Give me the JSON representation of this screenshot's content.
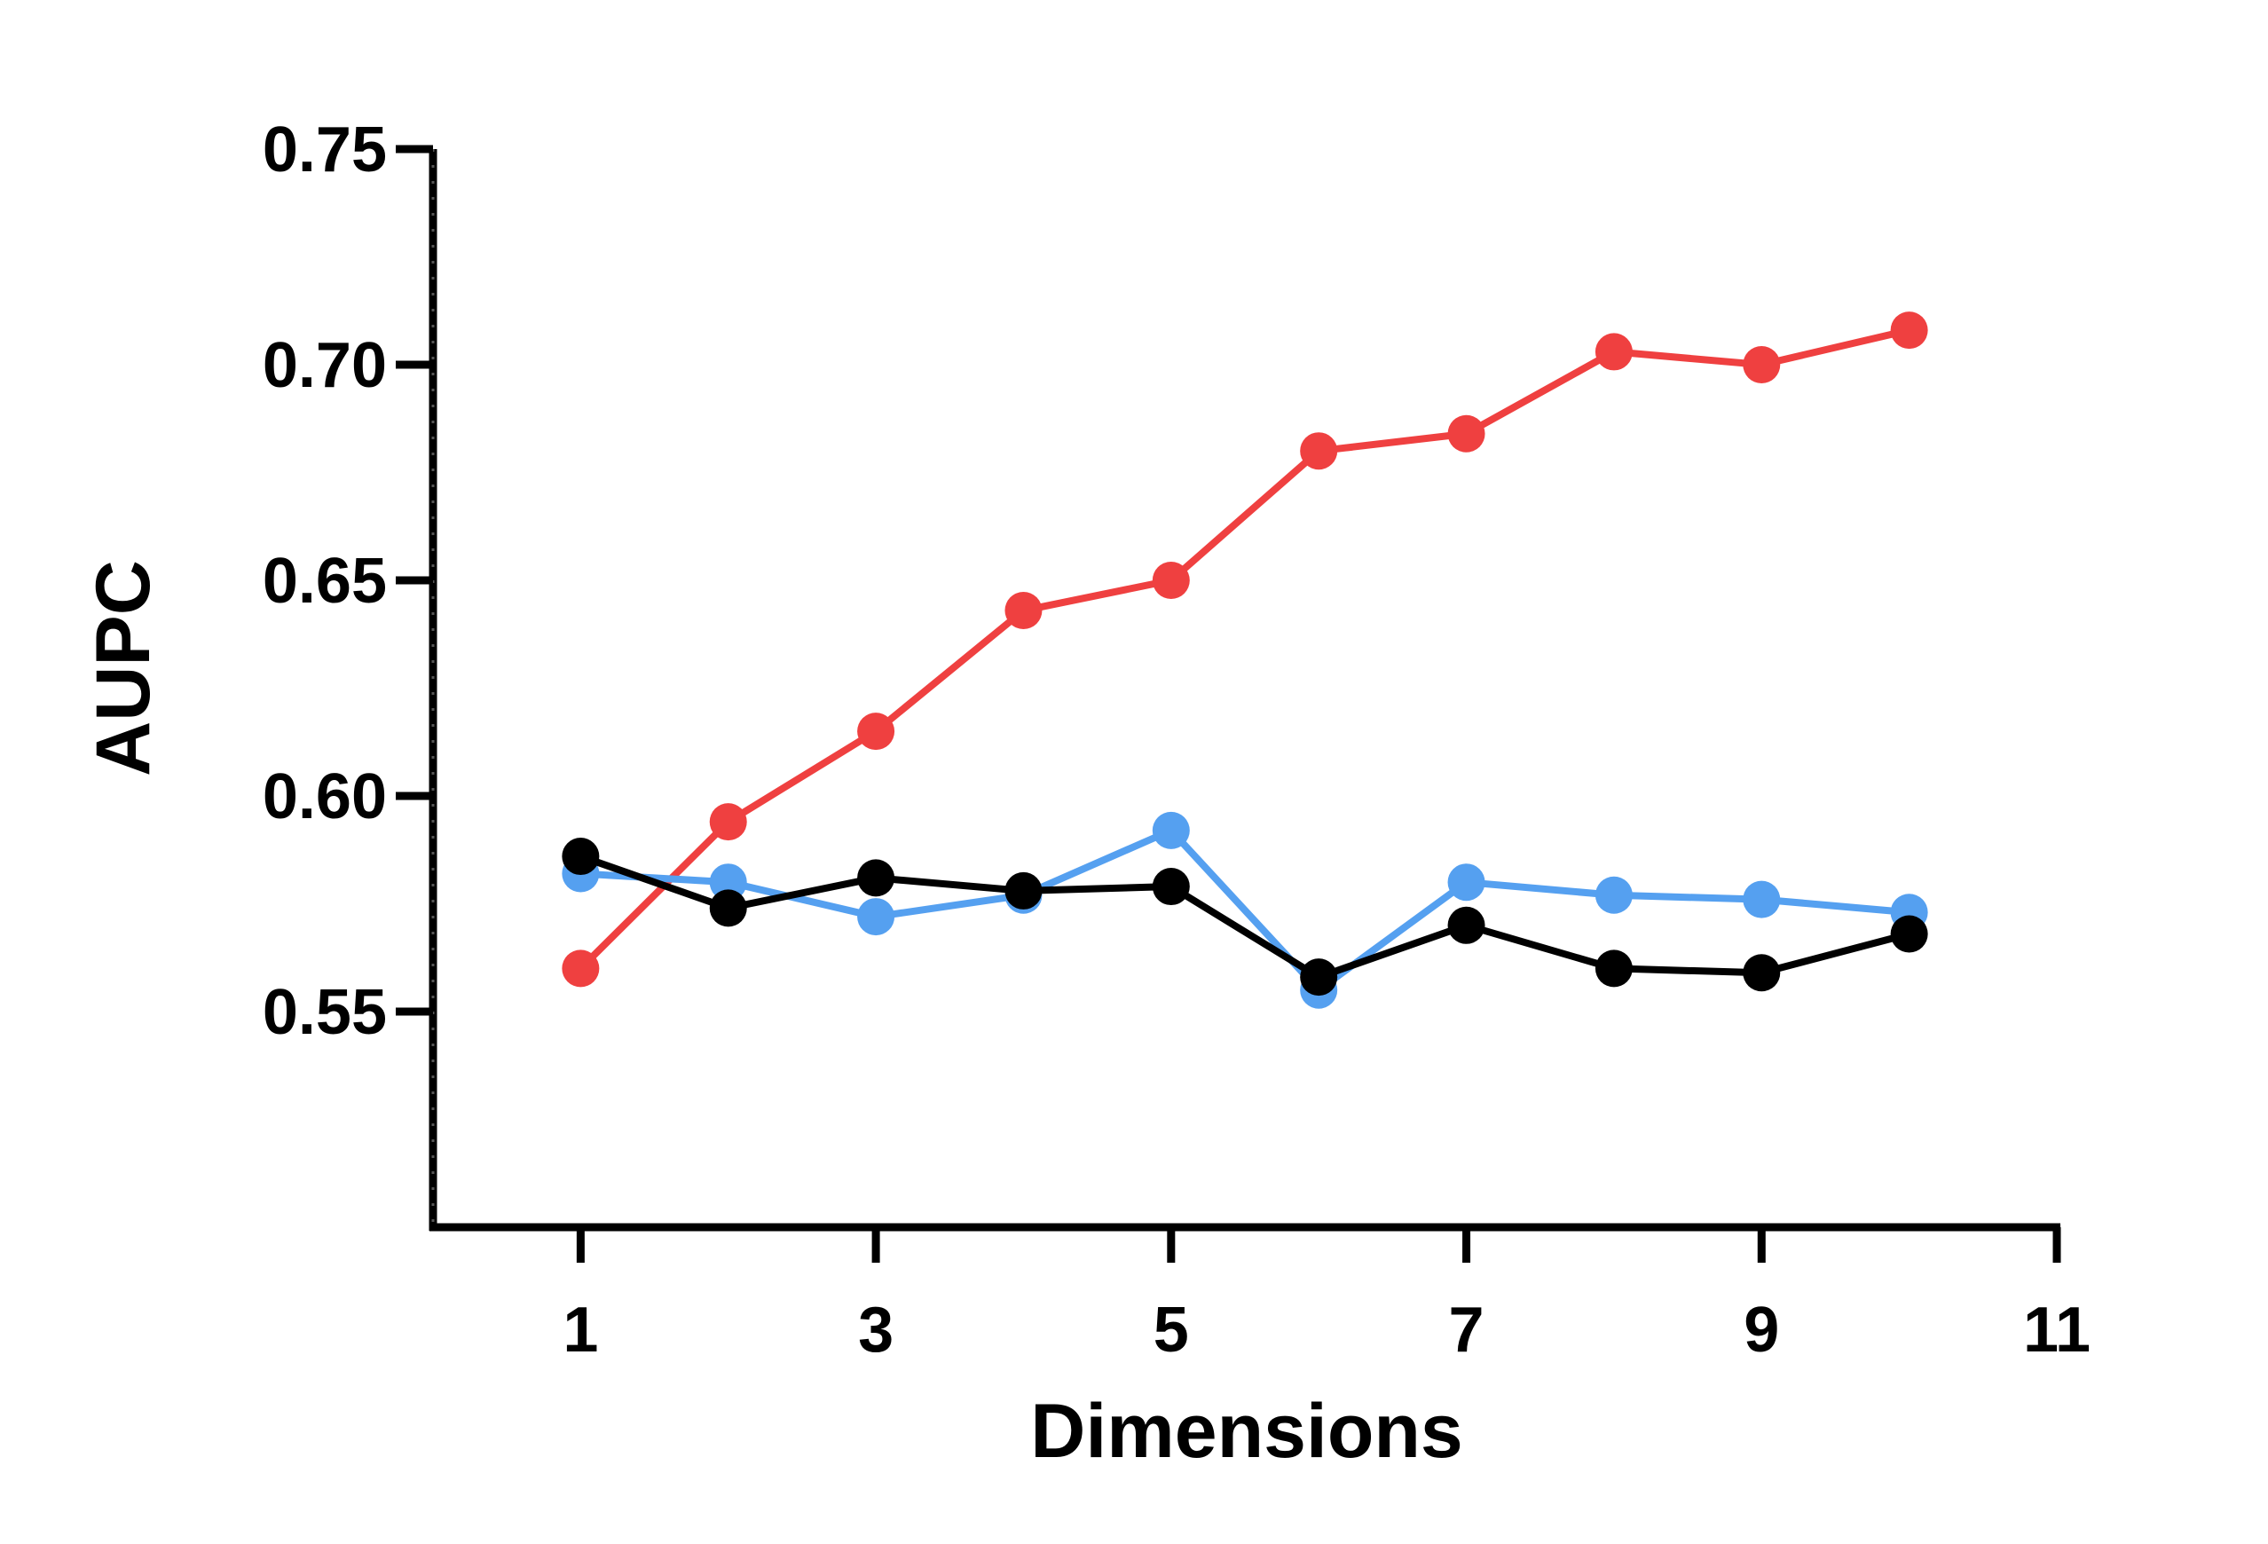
{
  "chart_data": {
    "type": "line",
    "title": "",
    "xlabel": "Dimensions",
    "ylabel": "AUPC",
    "xlim": [
      0,
      11
    ],
    "ylim": [
      0.5,
      0.75
    ],
    "x_ticks": [
      "1",
      "3",
      "5",
      "7",
      "9",
      "11"
    ],
    "y_ticks": [
      "0.55",
      "0.60",
      "0.65",
      "0.70",
      "0.75"
    ],
    "grid": false,
    "legend": "none",
    "x": [
      1,
      2,
      3,
      4,
      5,
      6,
      7,
      8,
      9,
      10
    ],
    "series": [
      {
        "color": "#ef4040",
        "values": [
          0.56,
          0.594,
          0.615,
          0.643,
          0.65,
          0.68,
          0.684,
          0.703,
          0.7,
          0.708
        ]
      },
      {
        "color": "#55a0f0",
        "values": [
          0.582,
          0.58,
          0.572,
          0.577,
          0.592,
          0.555,
          0.58,
          0.577,
          0.576,
          0.573
        ]
      },
      {
        "color": "#000000",
        "values": [
          0.586,
          0.574,
          0.581,
          0.578,
          0.579,
          0.558,
          0.57,
          0.56,
          0.559,
          0.568
        ]
      }
    ]
  }
}
